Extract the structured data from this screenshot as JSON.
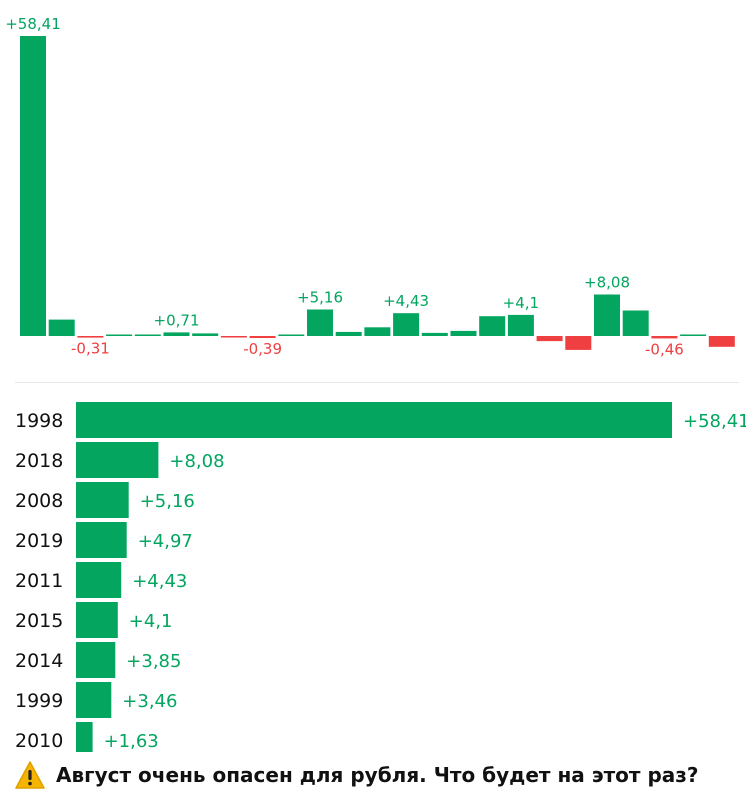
{
  "chart_data": [
    {
      "type": "bar",
      "description_of_source": "",
      "values": [
        58.41,
        3.2,
        -0.31,
        0.2,
        0.2,
        0.71,
        0.5,
        -0.25,
        -0.39,
        0.3,
        5.16,
        0.8,
        1.7,
        4.43,
        0.6,
        1.0,
        3.85,
        4.1,
        -1.0,
        -2.7,
        8.08,
        4.97,
        -0.46,
        0.3,
        -2.1
      ],
      "data_labels": [
        "+58,41",
        "",
        "-0,31",
        "",
        "",
        "+0,71",
        "",
        "",
        "-0,39",
        "",
        "+5,16",
        "",
        "",
        "+4,43",
        "",
        "",
        "",
        "+4,1",
        "",
        "",
        "+8,08",
        "",
        "-0,46",
        "",
        ""
      ],
      "ylim": [
        -3.5,
        58.41
      ],
      "colors": {
        "positive": "#04a55f",
        "negative": "#ef3f41"
      },
      "grid": false,
      "legend": "none"
    },
    {
      "type": "bar",
      "orientation": "horizontal",
      "categories": [
        "1998",
        "2018",
        "2008",
        "2019",
        "2011",
        "2015",
        "2014",
        "1999",
        "2010"
      ],
      "values": [
        58.41,
        8.08,
        5.16,
        4.97,
        4.43,
        4.1,
        3.85,
        3.46,
        1.63
      ],
      "data_labels": [
        "+58,41",
        "+8,08",
        "+5,16",
        "+4,97",
        "+4,43",
        "+4,1",
        "+3,85",
        "+3,46",
        "+1,63"
      ],
      "xlim": [
        0,
        58.41
      ],
      "colors": {
        "bar": "#04a55f",
        "label": "#04a55f",
        "category": "#111111"
      },
      "grid": false,
      "legend": "none"
    }
  ],
  "caption": {
    "icon": "warning-icon",
    "text": "Август очень опасен для рубля. Что будет на этот раз?"
  }
}
